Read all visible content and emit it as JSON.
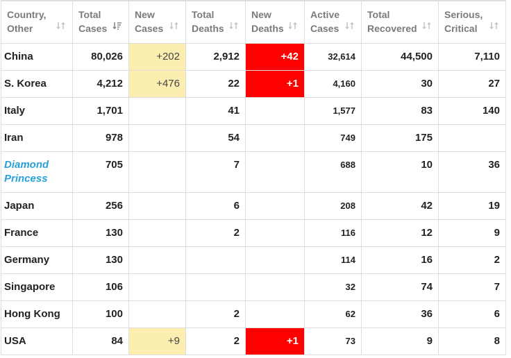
{
  "headers": [
    {
      "line1": "Country,",
      "line2": "Other",
      "sort": "sort-both-icon"
    },
    {
      "line1": "Total",
      "line2": "Cases",
      "sort": "sort-desc-active-icon"
    },
    {
      "line1": "New",
      "line2": "Cases",
      "sort": "sort-both-icon"
    },
    {
      "line1": "Total",
      "line2": "Deaths",
      "sort": "sort-both-icon"
    },
    {
      "line1": "New",
      "line2": "Deaths",
      "sort": "sort-both-icon"
    },
    {
      "line1": "Active",
      "line2": "Cases",
      "sort": "sort-both-icon"
    },
    {
      "line1": "Total",
      "line2": "Recovered",
      "sort": "sort-both-icon"
    },
    {
      "line1": "Serious,",
      "line2": "Critical",
      "sort": "sort-both-icon"
    }
  ],
  "colors": {
    "new_cases_highlight": "#fcedb1",
    "new_deaths_highlight": "#ff0000",
    "link": "#2aa0d8",
    "border": "#dddddd",
    "header_text": "#7a7a7a"
  },
  "rows": [
    {
      "country": "China",
      "total_cases": "80,026",
      "new_cases": "+202",
      "total_deaths": "2,912",
      "new_deaths": "+42",
      "active": "32,614",
      "recovered": "44,500",
      "critical": "7,110"
    },
    {
      "country": "S. Korea",
      "total_cases": "4,212",
      "new_cases": "+476",
      "total_deaths": "22",
      "new_deaths": "+1",
      "active": "4,160",
      "recovered": "30",
      "critical": "27"
    },
    {
      "country": "Italy",
      "total_cases": "1,701",
      "new_cases": "",
      "total_deaths": "41",
      "new_deaths": "",
      "active": "1,577",
      "recovered": "83",
      "critical": "140"
    },
    {
      "country": "Iran",
      "total_cases": "978",
      "new_cases": "",
      "total_deaths": "54",
      "new_deaths": "",
      "active": "749",
      "recovered": "175",
      "critical": ""
    },
    {
      "country_line1": "Diamond",
      "country_line2": "Princess",
      "total_cases": "705",
      "new_cases": "",
      "total_deaths": "7",
      "new_deaths": "",
      "active": "688",
      "recovered": "10",
      "critical": "36"
    },
    {
      "country": "Japan",
      "total_cases": "256",
      "new_cases": "",
      "total_deaths": "6",
      "new_deaths": "",
      "active": "208",
      "recovered": "42",
      "critical": "19"
    },
    {
      "country": "France",
      "total_cases": "130",
      "new_cases": "",
      "total_deaths": "2",
      "new_deaths": "",
      "active": "116",
      "recovered": "12",
      "critical": "9"
    },
    {
      "country": "Germany",
      "total_cases": "130",
      "new_cases": "",
      "total_deaths": "",
      "new_deaths": "",
      "active": "114",
      "recovered": "16",
      "critical": "2"
    },
    {
      "country": "Singapore",
      "total_cases": "106",
      "new_cases": "",
      "total_deaths": "",
      "new_deaths": "",
      "active": "32",
      "recovered": "74",
      "critical": "7"
    },
    {
      "country": "Hong Kong",
      "total_cases": "100",
      "new_cases": "",
      "total_deaths": "2",
      "new_deaths": "",
      "active": "62",
      "recovered": "36",
      "critical": "6"
    },
    {
      "country": "USA",
      "total_cases": "84",
      "new_cases": "+9",
      "total_deaths": "2",
      "new_deaths": "+1",
      "active": "73",
      "recovered": "9",
      "critical": "8"
    }
  ]
}
